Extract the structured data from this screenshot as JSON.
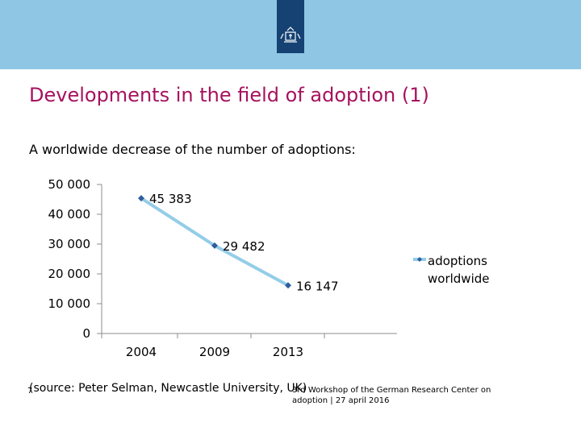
{
  "slide": {
    "title": "Developments in the field of adoption (1)",
    "subtitle": "A worldwide decrease of the number of adoptions:",
    "source": "(source: Peter Selman, Newcastle University, UK)",
    "page_number": "7",
    "footer": "3rd Workshop of the German Research Center on adoption | 27 april 2016",
    "colors": {
      "band": "#8fc6e4",
      "logo": "#154273",
      "title": "#a6125e",
      "line": "#93cde8",
      "marker": "#2e5e9e"
    }
  },
  "chart_data": {
    "type": "line",
    "categories": [
      "2004",
      "2009",
      "2013"
    ],
    "series": [
      {
        "name": "adoptions worldwide",
        "values": [
          45383,
          29482,
          16147
        ],
        "labels": [
          "45 383",
          "29 482",
          "16 147"
        ]
      }
    ],
    "ylim": [
      0,
      50000
    ],
    "yticks": [
      0,
      10000,
      20000,
      30000,
      40000,
      50000
    ],
    "ytick_labels": [
      "0",
      "10 000",
      "20 000",
      "30 000",
      "40 000",
      "50 000"
    ],
    "grid": false,
    "legend": "right"
  }
}
